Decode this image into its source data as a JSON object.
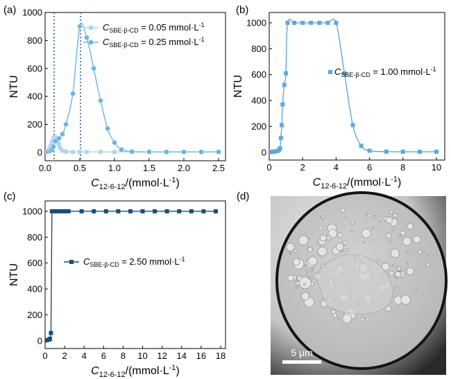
{
  "panels": {
    "a": {
      "label": "(a)"
    },
    "b": {
      "label": "(b)"
    },
    "c": {
      "label": "(c)"
    },
    "d": {
      "label": "(d)",
      "scale_bar": "5 μm"
    }
  },
  "colors": {
    "light_blue": "#b3d3ee",
    "mid_blue": "#6ab3e4",
    "dark_blue": "#1a4f78",
    "dotted_line": "#2f5f9a"
  },
  "chart_data": [
    {
      "panel": "a",
      "type": "scatter",
      "ylabel": "NTU",
      "xlabel_sym": "C",
      "xlabel_sub": "12-6-12",
      "xlabel_unit": "/(mmol·L",
      "xlabel_exp": "-1",
      "xlabel_end": ")",
      "xlim": [
        0,
        2.6
      ],
      "ylim": [
        -60,
        1000
      ],
      "xticks": [
        0,
        0.5,
        1.0,
        1.5,
        2.0,
        2.5
      ],
      "xtick_labels": [
        "0.0",
        "0.5",
        "1.0",
        "1.5",
        "2.0",
        "2.5"
      ],
      "yticks": [
        0,
        200,
        400,
        600,
        800,
        1000
      ],
      "ytick_labels": [
        "0",
        "200",
        "400",
        "600",
        "800",
        "1000"
      ],
      "vlines": [
        0.13,
        0.51
      ],
      "legend_position": "top-right",
      "series": [
        {
          "legend_sym": "C",
          "legend_sub": "SBE-β-CD",
          "legend_val": " = 0.05 mmol·L",
          "legend_exp": "-1",
          "marker": "square",
          "color": "#b3d3ee",
          "x": [
            0.0,
            0.02,
            0.04,
            0.06,
            0.08,
            0.1,
            0.12,
            0.14,
            0.16,
            0.18,
            0.2,
            0.22,
            0.25,
            0.3,
            0.4,
            0.5,
            0.6,
            0.8,
            1.0,
            1.25,
            1.5,
            1.75,
            2.0,
            2.25,
            2.5
          ],
          "y": [
            5,
            8,
            12,
            22,
            45,
            75,
            100,
            108,
            100,
            80,
            55,
            30,
            12,
            5,
            3,
            3,
            3,
            3,
            3,
            3,
            3,
            3,
            3,
            3,
            3
          ]
        },
        {
          "legend_sym": "C",
          "legend_sub": "SBE-β-CD",
          "legend_val": " = 0.25 mmol·L",
          "legend_exp": "-1",
          "marker": "circle",
          "color": "#6ab3e4",
          "x": [
            0.0,
            0.02,
            0.04,
            0.06,
            0.08,
            0.1,
            0.12,
            0.15,
            0.2,
            0.25,
            0.3,
            0.4,
            0.5,
            0.6,
            0.7,
            0.8,
            0.9,
            1.0,
            1.1,
            1.25,
            1.5,
            1.75,
            2.0,
            2.25,
            2.5
          ],
          "y": [
            2,
            3,
            5,
            8,
            12,
            20,
            40,
            80,
            100,
            130,
            200,
            420,
            900,
            820,
            600,
            370,
            170,
            70,
            20,
            5,
            3,
            3,
            3,
            3,
            3
          ]
        }
      ]
    },
    {
      "panel": "b",
      "type": "scatter",
      "ylabel": "NTU",
      "xlabel_sym": "C",
      "xlabel_sub": "12-6-12",
      "xlabel_unit": "/(mmol·L",
      "xlabel_exp": "-1",
      "xlabel_end": ")",
      "xlim": [
        0,
        10.5
      ],
      "ylim": [
        -60,
        1080
      ],
      "xticks": [
        0,
        2,
        4,
        6,
        8,
        10
      ],
      "xtick_labels": [
        "0",
        "2",
        "4",
        "6",
        "8",
        "10"
      ],
      "yticks": [
        0,
        200,
        400,
        600,
        800,
        1000
      ],
      "ytick_labels": [
        "0",
        "200",
        "400",
        "600",
        "800",
        "1000"
      ],
      "series": [
        {
          "legend_sym": "C",
          "legend_sub": "SBE-β-CD",
          "legend_val": " = 1.00 mmol·L",
          "legend_exp": "-1",
          "marker": "square",
          "color": "#5fa8de",
          "x": [
            0.1,
            0.2,
            0.3,
            0.4,
            0.5,
            0.6,
            0.65,
            0.7,
            0.75,
            0.8,
            0.9,
            1.0,
            1.1,
            1.5,
            2.0,
            2.5,
            3.0,
            3.5,
            4.0,
            4.5,
            5.0,
            5.5,
            6.0,
            7.0,
            8.0,
            9.0,
            10.0
          ],
          "y": [
            2,
            3,
            5,
            8,
            10,
            20,
            30,
            110,
            210,
            370,
            520,
            610,
            1000,
            1000,
            1000,
            1000,
            1000,
            1000,
            1000,
            610,
            210,
            50,
            12,
            5,
            4,
            4,
            4
          ]
        }
      ]
    },
    {
      "panel": "c",
      "type": "line",
      "ylabel": "NTU",
      "xlabel_sym": "C",
      "xlabel_sub": "12-6-12",
      "xlabel_unit": "/(mmol·L",
      "xlabel_exp": "-1",
      "xlabel_end": ")",
      "xlim": [
        0,
        18.5
      ],
      "ylim": [
        -60,
        1080
      ],
      "xticks": [
        0,
        2,
        4,
        6,
        8,
        10,
        12,
        14,
        16,
        18
      ],
      "xtick_labels": [
        "0",
        "2",
        "4",
        "6",
        "8",
        "10",
        "12",
        "14",
        "16",
        "18"
      ],
      "yticks": [
        0,
        200,
        400,
        600,
        800,
        1000
      ],
      "ytick_labels": [
        "0",
        "200",
        "400",
        "600",
        "800",
        "1000"
      ],
      "series": [
        {
          "legend_sym": "C",
          "legend_sub": "SBE-β-CD",
          "legend_val": " = 2.50 mmol·L",
          "legend_exp": "-1",
          "marker": "square",
          "color": "#1a4f78",
          "x": [
            0.0,
            0.2,
            0.4,
            0.5,
            0.6,
            0.7,
            0.8,
            1.0,
            1.2,
            1.4,
            1.6,
            1.8,
            2.0,
            2.2,
            2.4,
            3.75,
            5.0,
            6.25,
            7.5,
            8.75,
            10.0,
            11.25,
            12.5,
            13.75,
            15.0,
            16.25,
            17.5
          ],
          "y": [
            2,
            5,
            8,
            15,
            60,
            1000,
            1000,
            1000,
            1000,
            1000,
            1000,
            1000,
            1000,
            1000,
            1000,
            1000,
            1000,
            1000,
            1000,
            1000,
            1000,
            1000,
            1000,
            1000,
            1000,
            1000,
            1000
          ]
        }
      ]
    }
  ]
}
